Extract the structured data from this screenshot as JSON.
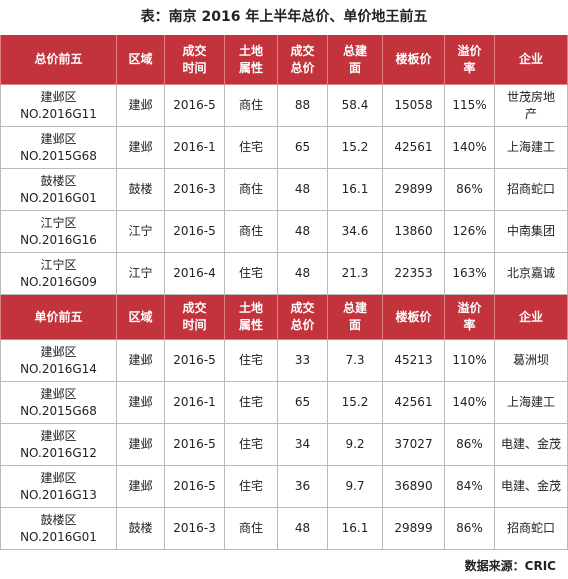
{
  "title": "表：南京 2016 年上半年总价、单价地王前五",
  "sections": [
    {
      "header": [
        [
          "总价前五"
        ],
        [
          "区域"
        ],
        [
          "成交",
          "时间"
        ],
        [
          "土地",
          "属性"
        ],
        [
          "成交",
          "总价"
        ],
        [
          "总建",
          "面"
        ],
        [
          "楼板价"
        ],
        [
          "溢价",
          "率"
        ],
        [
          "企业"
        ]
      ],
      "rows": [
        [
          [
            "建邺区",
            "NO.2016G11"
          ],
          [
            "建邺"
          ],
          [
            "2016-5"
          ],
          [
            "商住"
          ],
          [
            "88"
          ],
          [
            "58.4"
          ],
          [
            "15058"
          ],
          [
            "115%"
          ],
          [
            "世茂房地",
            "产"
          ]
        ],
        [
          [
            "建邺区",
            "NO.2015G68"
          ],
          [
            "建邺"
          ],
          [
            "2016-1"
          ],
          [
            "住宅"
          ],
          [
            "65"
          ],
          [
            "15.2"
          ],
          [
            "42561"
          ],
          [
            "140%"
          ],
          [
            "上海建工"
          ]
        ],
        [
          [
            "鼓楼区",
            "NO.2016G01"
          ],
          [
            "鼓楼"
          ],
          [
            "2016-3"
          ],
          [
            "商住"
          ],
          [
            "48"
          ],
          [
            "16.1"
          ],
          [
            "29899"
          ],
          [
            "86%"
          ],
          [
            "招商蛇口"
          ]
        ],
        [
          [
            "江宁区",
            "NO.2016G16"
          ],
          [
            "江宁"
          ],
          [
            "2016-5"
          ],
          [
            "商住"
          ],
          [
            "48"
          ],
          [
            "34.6"
          ],
          [
            "13860"
          ],
          [
            "126%"
          ],
          [
            "中南集团"
          ]
        ],
        [
          [
            "江宁区",
            "NO.2016G09"
          ],
          [
            "江宁"
          ],
          [
            "2016-4"
          ],
          [
            "住宅"
          ],
          [
            "48"
          ],
          [
            "21.3"
          ],
          [
            "22353"
          ],
          [
            "163%"
          ],
          [
            "北京嘉诚"
          ]
        ]
      ]
    },
    {
      "header": [
        [
          "单价前五"
        ],
        [
          "区域"
        ],
        [
          "成交",
          "时间"
        ],
        [
          "土地",
          "属性"
        ],
        [
          "成交",
          "总价"
        ],
        [
          "总建",
          "面"
        ],
        [
          "楼板价"
        ],
        [
          "溢价",
          "率"
        ],
        [
          "企业"
        ]
      ],
      "rows": [
        [
          [
            "建邺区",
            "NO.2016G14"
          ],
          [
            "建邺"
          ],
          [
            "2016-5"
          ],
          [
            "住宅"
          ],
          [
            "33"
          ],
          [
            "7.3"
          ],
          [
            "45213"
          ],
          [
            "110%"
          ],
          [
            "葛洲坝"
          ]
        ],
        [
          [
            "建邺区",
            "NO.2015G68"
          ],
          [
            "建邺"
          ],
          [
            "2016-1"
          ],
          [
            "住宅"
          ],
          [
            "65"
          ],
          [
            "15.2"
          ],
          [
            "42561"
          ],
          [
            "140%"
          ],
          [
            "上海建工"
          ]
        ],
        [
          [
            "建邺区",
            "NO.2016G12"
          ],
          [
            "建邺"
          ],
          [
            "2016-5"
          ],
          [
            "住宅"
          ],
          [
            "34"
          ],
          [
            "9.2"
          ],
          [
            "37027"
          ],
          [
            "86%"
          ],
          [
            "电建、金茂"
          ]
        ],
        [
          [
            "建邺区",
            "NO.2016G13"
          ],
          [
            "建邺"
          ],
          [
            "2016-5"
          ],
          [
            "住宅"
          ],
          [
            "36"
          ],
          [
            "9.7"
          ],
          [
            "36890"
          ],
          [
            "84%"
          ],
          [
            "电建、金茂"
          ]
        ],
        [
          [
            "鼓楼区",
            "NO.2016G01"
          ],
          [
            "鼓楼"
          ],
          [
            "2016-3"
          ],
          [
            "商住"
          ],
          [
            "48"
          ],
          [
            "16.1"
          ],
          [
            "29899"
          ],
          [
            "86%"
          ],
          [
            "招商蛇口"
          ]
        ]
      ]
    }
  ],
  "source": "数据来源：CRIC"
}
